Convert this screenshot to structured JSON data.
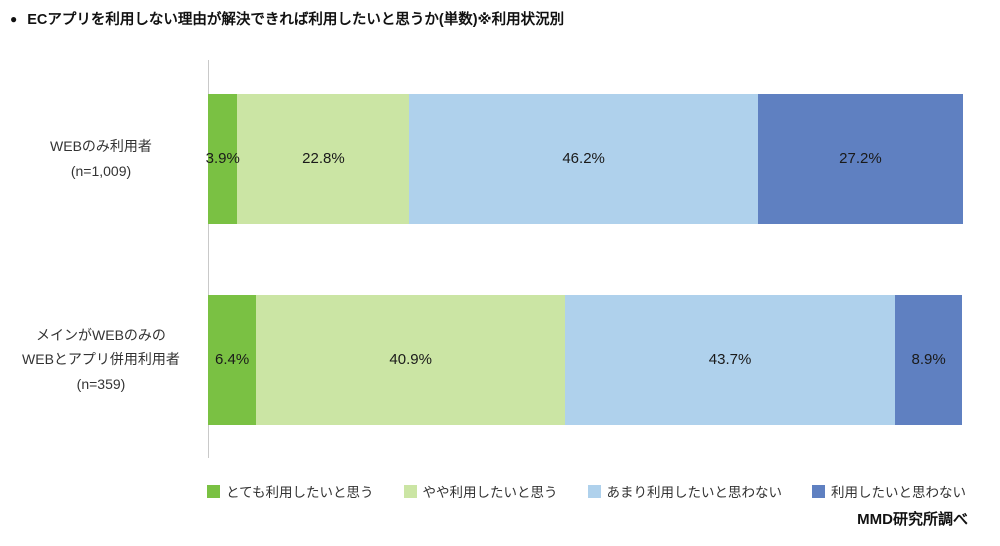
{
  "title_bullet": "●",
  "title": "ECアプリを利用しない理由が解決できれば利用したいと思うか(単数)※利用状況別",
  "source": "MMD研究所調べ",
  "chart_data": {
    "type": "bar",
    "orientation": "horizontal",
    "stacked": true,
    "xlim": [
      0,
      100
    ],
    "value_suffix": "%",
    "grid": false,
    "legend_position": "bottom",
    "categories": [
      {
        "lines": [
          "WEBのみ利用者",
          "(n=1,009)"
        ]
      },
      {
        "lines": [
          "メインがWEBのみの",
          "WEBとアプリ併用利用者",
          "(n=359)"
        ]
      }
    ],
    "series": [
      {
        "name": "とても利用したいと思う",
        "color": "#7AC143",
        "values": [
          3.9,
          6.4
        ]
      },
      {
        "name": "やや利用したいと思う",
        "color": "#CBE5A4",
        "values": [
          22.8,
          40.9
        ]
      },
      {
        "name": "あまり利用したいと思わない",
        "color": "#AFD1EC",
        "values": [
          46.2,
          43.7
        ]
      },
      {
        "name": "利用したいと思わない",
        "color": "#5F80C1",
        "values": [
          27.2,
          8.9
        ]
      }
    ]
  }
}
